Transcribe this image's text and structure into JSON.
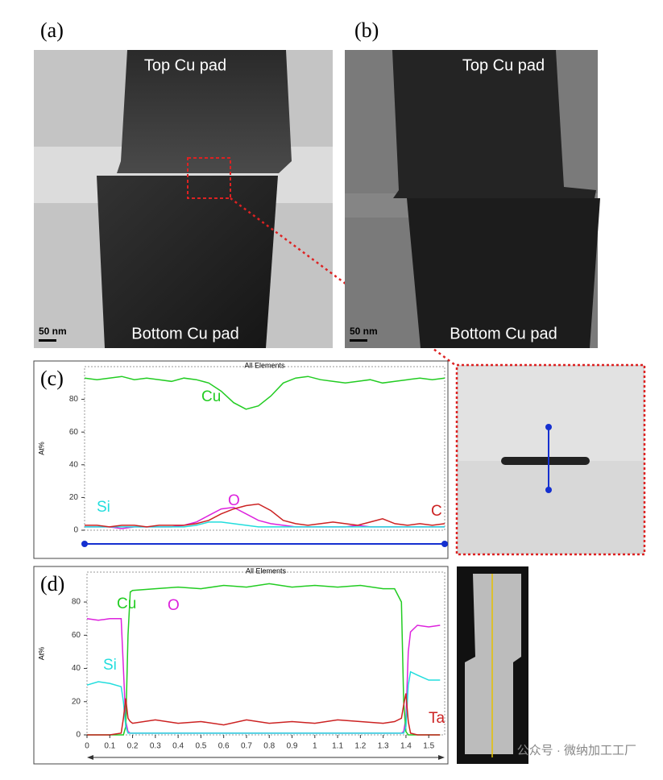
{
  "panels": [
    {
      "label": "(a)",
      "top": "Top Cu pad",
      "bottom": "Bottom Cu pad",
      "scale": "50 nm"
    },
    {
      "label": "(b)",
      "top": "Top Cu pad",
      "bottom": "Bottom Cu pad",
      "scale": "50 nm"
    }
  ],
  "watermark": "公众号 · 微纳加工工厂",
  "chart_data": [
    {
      "type": "line",
      "panel": "(c)",
      "title": "All Elements",
      "y_label": "At%",
      "ylim": [
        0,
        100
      ],
      "yticks": [
        0,
        20,
        40,
        60,
        80
      ],
      "series": [
        {
          "name": "Cu",
          "color": "#22cc22",
          "values": [
            93,
            92,
            93,
            94,
            92,
            93,
            92,
            91,
            93,
            92,
            90,
            85,
            78,
            74,
            76,
            82,
            90,
            93,
            94,
            92,
            91,
            90,
            91,
            92,
            90,
            91,
            92,
            93,
            92,
            93
          ]
        },
        {
          "name": "O",
          "color": "#dd22dd",
          "values": [
            2,
            2,
            2,
            1,
            2,
            2,
            2,
            2,
            3,
            5,
            9,
            13,
            14,
            10,
            6,
            4,
            3,
            2,
            2,
            2,
            2,
            2,
            3,
            2,
            2,
            2,
            2,
            2,
            2,
            2
          ]
        },
        {
          "name": "Si",
          "color": "#22dddd",
          "values": [
            2,
            2,
            2,
            2,
            2,
            2,
            2,
            2,
            2,
            3,
            5,
            5,
            4,
            3,
            2,
            2,
            2,
            2,
            2,
            2,
            2,
            2,
            2,
            2,
            2,
            2,
            2,
            2,
            2,
            2
          ]
        },
        {
          "name": "C",
          "color": "#cc2222",
          "values": [
            3,
            3,
            2,
            3,
            3,
            2,
            3,
            3,
            3,
            4,
            6,
            10,
            13,
            15,
            16,
            12,
            6,
            4,
            3,
            4,
            5,
            4,
            3,
            5,
            7,
            4,
            3,
            4,
            3,
            4
          ]
        }
      ]
    },
    {
      "type": "line",
      "panel": "(d)",
      "title": "All Elements",
      "y_label": "At%",
      "ylim": [
        0,
        98
      ],
      "yticks": [
        0,
        20,
        40,
        60,
        80
      ],
      "xlim": [
        0,
        1.57
      ],
      "xticks": [
        0,
        0.1,
        0.2,
        0.3,
        0.4,
        0.5,
        0.6,
        0.7,
        0.8,
        0.9,
        1,
        1.1,
        1.2,
        1.3,
        1.4,
        1.5
      ],
      "x": [
        0,
        0.05,
        0.1,
        0.15,
        0.16,
        0.17,
        0.18,
        0.19,
        0.2,
        0.3,
        0.4,
        0.5,
        0.6,
        0.7,
        0.8,
        0.9,
        1.0,
        1.1,
        1.2,
        1.3,
        1.35,
        1.38,
        1.39,
        1.4,
        1.41,
        1.42,
        1.45,
        1.5,
        1.55
      ],
      "series": [
        {
          "name": "O",
          "color": "#dd22dd",
          "values": [
            70,
            69,
            70,
            70,
            40,
            8,
            2,
            1,
            1,
            1,
            1,
            1,
            1,
            1,
            1,
            1,
            1,
            1,
            1,
            1,
            1,
            1,
            2,
            10,
            50,
            62,
            66,
            65,
            66
          ]
        },
        {
          "name": "Cu",
          "color": "#22cc22",
          "values": [
            0,
            0,
            0,
            0,
            0,
            5,
            60,
            86,
            87,
            88,
            89,
            88,
            90,
            89,
            91,
            89,
            90,
            89,
            90,
            88,
            88,
            80,
            20,
            2,
            0,
            0,
            0,
            0,
            0
          ]
        },
        {
          "name": "Si",
          "color": "#22dddd",
          "values": [
            30,
            32,
            31,
            29,
            20,
            5,
            1,
            1,
            1,
            1,
            1,
            1,
            1,
            1,
            1,
            1,
            1,
            1,
            1,
            1,
            1,
            1,
            1,
            5,
            30,
            38,
            36,
            33,
            33
          ]
        },
        {
          "name": "Ta",
          "color": "#cc2222",
          "values": [
            0,
            0,
            0,
            1,
            10,
            22,
            10,
            8,
            7,
            9,
            7,
            8,
            6,
            9,
            7,
            8,
            7,
            9,
            8,
            7,
            8,
            10,
            18,
            25,
            8,
            1,
            0,
            0,
            0
          ]
        }
      ]
    }
  ]
}
